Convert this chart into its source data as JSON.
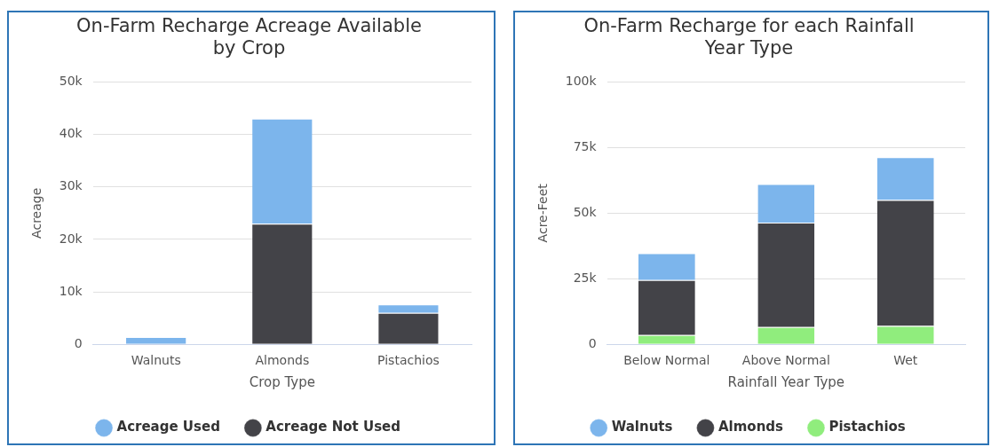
{
  "chart_data": [
    {
      "type": "bar",
      "title": "On-Farm Recharge Acreage Available by Crop",
      "xlabel": "Crop Type",
      "ylabel": "Acreage",
      "categories": [
        "Walnuts",
        "Almonds",
        "Pistachios"
      ],
      "stacked": true,
      "series": [
        {
          "name": "Acreage Not Used",
          "color": "#434348",
          "values": [
            0,
            23000,
            6000
          ]
        },
        {
          "name": "Acreage Used",
          "color": "#7cb5ec",
          "values": [
            1400,
            20000,
            1600
          ]
        }
      ],
      "ylim": [
        0,
        50000
      ],
      "yticks": [
        {
          "value": 0,
          "label": "0"
        },
        {
          "value": 10000,
          "label": "10k"
        },
        {
          "value": 20000,
          "label": "20k"
        },
        {
          "value": 30000,
          "label": "30k"
        },
        {
          "value": 40000,
          "label": "40k"
        },
        {
          "value": 50000,
          "label": "50k"
        }
      ],
      "grid": "y",
      "legend": "bottom"
    },
    {
      "type": "bar",
      "title": "On-Farm Recharge for each Rainfall Year Type",
      "xlabel": "Rainfall Year Type",
      "ylabel": "Acre-Feet",
      "categories": [
        "Below Normal",
        "Above Normal",
        "Wet"
      ],
      "stacked": true,
      "series": [
        {
          "name": "Pistachios",
          "color": "#90ed7d",
          "values": [
            3500,
            6600,
            7000
          ]
        },
        {
          "name": "Almonds",
          "color": "#434348",
          "values": [
            21000,
            39800,
            48000
          ]
        },
        {
          "name": "Walnuts",
          "color": "#7cb5ec",
          "values": [
            10200,
            14700,
            16300
          ]
        }
      ],
      "ylim": [
        0,
        100000
      ],
      "yticks": [
        {
          "value": 0,
          "label": "0"
        },
        {
          "value": 25000,
          "label": "25k"
        },
        {
          "value": 50000,
          "label": "50k"
        },
        {
          "value": 75000,
          "label": "75k"
        },
        {
          "value": 100000,
          "label": "100k"
        }
      ],
      "grid": "y",
      "legend": "bottom"
    }
  ]
}
